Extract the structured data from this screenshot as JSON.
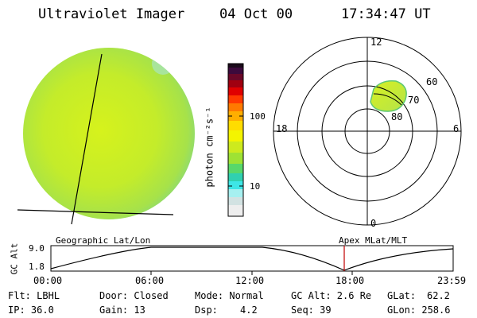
{
  "header": {
    "instrument": "Ultraviolet Imager",
    "date": "04 Oct 00",
    "time": "17:34:47 UT"
  },
  "colorbar": {
    "unit_label": "photon cm⁻²s⁻¹",
    "ticks": [
      "100",
      "10"
    ]
  },
  "polar_plot": {
    "hour_labels": {
      "top": "12",
      "bottom": "0",
      "left": "18",
      "right": "6"
    },
    "lat_labels": [
      "60",
      "70",
      "80"
    ]
  },
  "timeline": {
    "y_axis_label": "GC Alt",
    "y_ticks": [
      "9.0",
      "1.8"
    ],
    "left_title": "Geographic Lat/Lon",
    "right_title": "Apex MLat/MLT",
    "x_ticks": [
      "00:00",
      "06:00",
      "12:00",
      "18:00",
      "23:59"
    ]
  },
  "info": {
    "filter": "Flt: LBHL",
    "ip": "IP: 36.0",
    "door": "Door: Closed",
    "gain": "Gain: 13",
    "mode": "Mode: Normal",
    "dsp_label": "Dsp:",
    "dsp_value": "4.2",
    "gc_alt": "GC Alt: 2.6 Re",
    "seq": "Seq: 39",
    "glat_label": "GLat:",
    "glat_value": "62.2",
    "glon": "GLon: 258.6"
  }
}
